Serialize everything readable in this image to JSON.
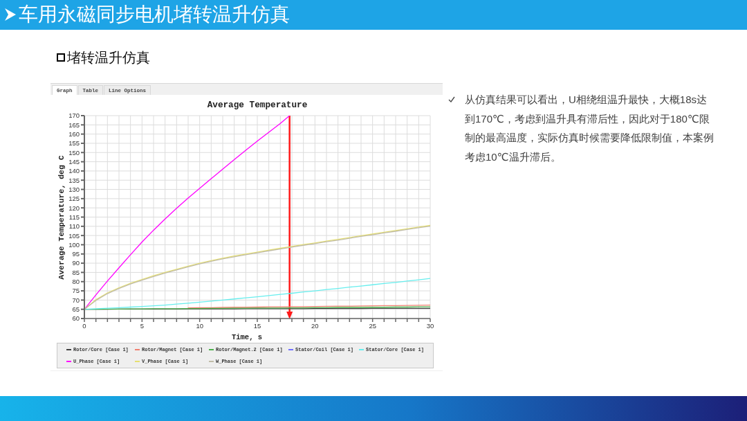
{
  "chart_data": {
    "type": "line",
    "title": "Average Temperature",
    "xlabel": "Time, s",
    "ylabel": "Average Temperature, deg C",
    "annotations": [
      "车用永磁同步电机堵转温升仿真",
      "堵转温升仿真",
      "从仿真结果可以看出，U相绕组温升最快，大概18s达到170℃，考虑到温升具有滞后性，因此对于180℃限制的最高温度，实际仿真时候需要降低限制值，本案例考虑10℃温升滞后。",
      "Graph",
      "Table",
      "Line Options"
    ],
    "x": [
      0,
      1,
      2,
      3,
      4,
      5,
      6,
      7,
      8,
      9,
      10,
      11,
      12,
      13,
      14,
      15,
      16,
      17,
      18,
      19,
      20,
      21,
      22,
      23,
      24,
      25,
      26,
      27,
      28,
      29,
      30
    ],
    "series": [
      {
        "name": "Rotor/Core [Case 1]",
        "color": "#404040",
        "values": [
          65,
          65,
          65,
          65.1,
          65.1,
          65.1,
          65.1,
          65.1,
          65.1,
          65.2,
          65.2,
          65.2,
          65.2,
          65.2,
          65.3,
          65.3,
          65.3,
          65.3,
          65.3,
          65.3,
          65.4,
          65.4,
          65.4,
          65.4,
          65.4,
          65.5,
          65.5,
          65.5,
          65.5,
          65.5,
          65.5
        ]
      },
      {
        "name": "Rotor/Magnet [Case 1]",
        "color": "#f08070",
        "values": [
          null,
          null,
          null,
          null,
          null,
          null,
          null,
          null,
          null,
          65.8,
          65.9,
          65.9,
          66,
          66.1,
          66.1,
          66.2,
          66.3,
          66.3,
          66.4,
          66.4,
          66.5,
          66.6,
          66.7,
          66.7,
          66.8,
          66.9,
          67,
          67,
          67.1,
          67.2,
          67.3
        ]
      },
      {
        "name": "Rotor/Magnet.2 [Case 1]",
        "color": "#4cb04c",
        "values": [
          65,
          65,
          65.1,
          65.1,
          65.2,
          65.2,
          65.3,
          65.3,
          65.3,
          65.4,
          65.4,
          65.5,
          65.5,
          65.6,
          65.6,
          65.7,
          65.7,
          65.7,
          65.8,
          65.8,
          65.9,
          65.9,
          66,
          66,
          66,
          66.1,
          66.1,
          66.2,
          66.2,
          66.3,
          66.3
        ]
      },
      {
        "name": "Stator/Coil [Case 1]",
        "color": "#7070ff",
        "values": [
          null,
          null,
          null,
          null,
          null,
          null,
          null,
          null,
          null,
          null,
          null,
          null,
          null,
          null,
          null,
          null,
          null,
          null,
          null,
          null,
          null,
          null,
          null,
          null,
          null,
          null,
          null,
          null,
          null,
          null,
          null
        ]
      },
      {
        "name": "Stator/Core [Case 1]",
        "color": "#66eeee",
        "values": [
          65,
          65.3,
          65.6,
          65.9,
          66.2,
          66.5,
          66.9,
          67.3,
          67.8,
          68.3,
          68.9,
          69.4,
          70,
          70.6,
          71.2,
          71.8,
          72.4,
          73.1,
          73.7,
          74.4,
          75,
          75.7,
          76.3,
          77,
          77.6,
          78.3,
          79,
          79.6,
          80.3,
          81,
          81.7
        ]
      },
      {
        "name": "U_Phase [Case 1]",
        "color": "#ff00ff",
        "x": [
          0,
          1,
          2,
          3,
          4,
          5,
          6,
          7,
          8,
          9,
          10,
          11,
          12,
          13,
          14,
          15,
          16,
          17,
          17.8
        ],
        "values": [
          65,
          72.8,
          80.3,
          87.5,
          94.6,
          101.5,
          107.9,
          114,
          119.8,
          125.3,
          130.6,
          135.8,
          141,
          146.2,
          151.2,
          156.2,
          161,
          165.8,
          170
        ]
      },
      {
        "name": "V_Phase [Case 1]",
        "color": "#e6e070",
        "values": [
          65,
          70.2,
          73.9,
          76.7,
          79.1,
          81.2,
          83.2,
          85,
          86.7,
          88.4,
          90,
          91.4,
          92.7,
          93.9,
          95,
          96,
          97.1,
          98.1,
          99.1,
          100.1,
          101,
          102,
          102.9,
          103.9,
          104.9,
          105.8,
          106.8,
          107.7,
          108.7,
          109.6,
          110.5
        ]
      },
      {
        "name": "W_Phase [Case 1]",
        "color": "#c0bca8",
        "values": [
          65,
          69.8,
          73.5,
          76.3,
          78.7,
          80.8,
          82.8,
          84.6,
          86.3,
          88,
          89.6,
          91,
          92.3,
          93.5,
          94.6,
          95.6,
          96.7,
          97.7,
          98.7,
          99.7,
          100.6,
          101.6,
          102.5,
          103.5,
          104.5,
          105.4,
          106.4,
          107.3,
          108.3,
          109.2,
          110.1
        ]
      }
    ],
    "xlim": [
      0,
      30
    ],
    "xticks": [
      0,
      {
        "value": 1,
        "label": null
      },
      {
        "value": 2,
        "label": null
      },
      {
        "value": 3,
        "label": null
      },
      {
        "value": 4,
        "label": null
      },
      5,
      {
        "value": 6,
        "label": null
      },
      {
        "value": 7,
        "label": null
      },
      {
        "value": 8,
        "label": null
      },
      {
        "value": 9,
        "label": null
      },
      10,
      {
        "value": 11,
        "label": null
      },
      {
        "value": 12,
        "label": null
      },
      {
        "value": 13,
        "label": null
      },
      {
        "value": 14,
        "label": null
      },
      15,
      {
        "value": 16,
        "label": null
      },
      {
        "value": 17,
        "label": null
      },
      {
        "value": 18,
        "label": null
      },
      {
        "value": 19,
        "label": null
      },
      20,
      {
        "value": 21,
        "label": null
      },
      {
        "value": 22,
        "label": null
      },
      {
        "value": 23,
        "label": null
      },
      {
        "value": 24,
        "label": null
      },
      25,
      {
        "value": 26,
        "label": null
      },
      {
        "value": 27,
        "label": null
      },
      {
        "value": 28,
        "label": null
      },
      {
        "value": 29,
        "label": null
      },
      30
    ],
    "ylim": [
      60,
      170
    ],
    "yticks": [
      60,
      65,
      70,
      75,
      80,
      85,
      90,
      95,
      100,
      105,
      110,
      115,
      120,
      125,
      130,
      135,
      140,
      145,
      150,
      155,
      160,
      165,
      170
    ],
    "ref_lines": [
      {
        "axis": "x",
        "value": 17.8,
        "color": "#ff1a1a"
      }
    ],
    "grid": true,
    "legend": "bottom",
    "marker": "none",
    "line_style": "solid"
  }
}
